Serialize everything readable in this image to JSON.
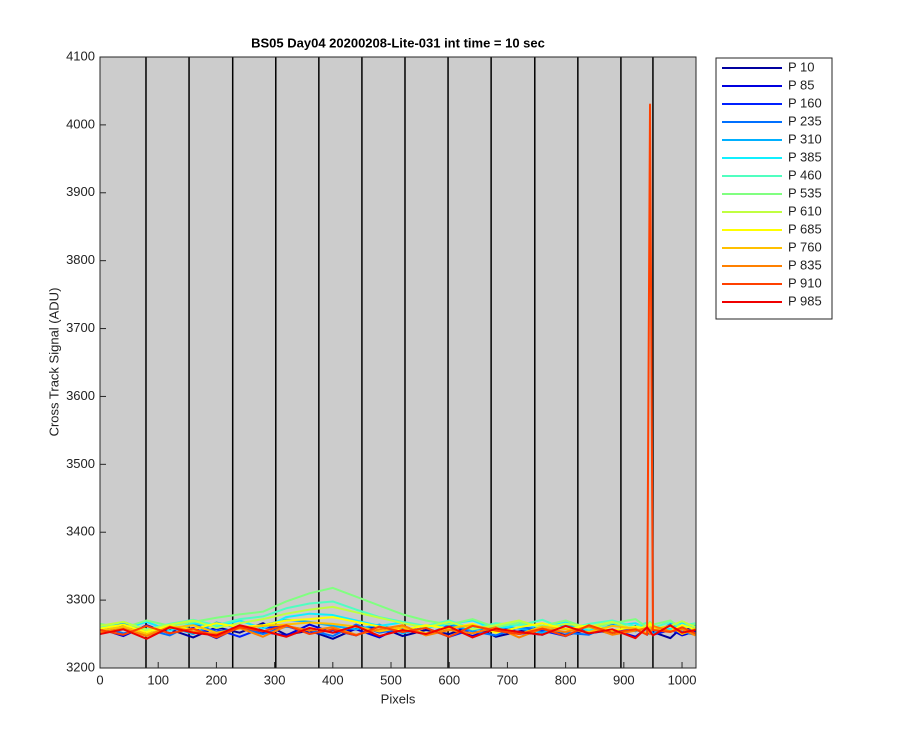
{
  "chart_data": {
    "type": "line",
    "title": "BS05 Day04 20200208-Lite-031 int time = 10 sec",
    "x_label": "Pixels",
    "y_label": "Cross Track Signal (ADU)",
    "xlim": [
      0,
      1024
    ],
    "ylim": [
      3200,
      4100
    ],
    "xticks": [
      0,
      100,
      200,
      300,
      400,
      500,
      600,
      700,
      800,
      900,
      1000
    ],
    "yticks": [
      3200,
      3300,
      3400,
      3500,
      3600,
      3700,
      3800,
      3900,
      4000,
      4100
    ],
    "vertical_lines": [
      79,
      153,
      228,
      302,
      376,
      450,
      524,
      598,
      672,
      747,
      821,
      895,
      950
    ],
    "legend": "outside-right",
    "x": [
      0,
      40,
      80,
      120,
      160,
      200,
      240,
      280,
      320,
      360,
      400,
      440,
      480,
      520,
      560,
      600,
      640,
      680,
      720,
      760,
      800,
      840,
      880,
      920,
      940,
      945,
      950,
      980,
      1000,
      1023
    ],
    "series": [
      {
        "name": "P 10",
        "color": "#00009f",
        "values": [
          3250,
          3262,
          3248,
          3257,
          3245,
          3260,
          3252,
          3266,
          3249,
          3255,
          3243,
          3258,
          3261,
          3247,
          3256,
          3250,
          3263,
          3246,
          3254,
          3259,
          3248,
          3257,
          3251,
          3262,
          3249,
          3256,
          3253,
          3244,
          3260,
          3255
        ]
      },
      {
        "name": "P 85",
        "color": "#0000e0",
        "values": [
          3258,
          3247,
          3263,
          3251,
          3259,
          3244,
          3261,
          3253,
          3248,
          3264,
          3252,
          3257,
          3245,
          3262,
          3250,
          3258,
          3247,
          3260,
          3253,
          3249,
          3265,
          3251,
          3256,
          3246,
          3259,
          3252,
          3261,
          3257,
          3248,
          3254
        ]
      },
      {
        "name": "P 160",
        "color": "#0020ff",
        "values": [
          3255,
          3260,
          3249,
          3264,
          3252,
          3257,
          3246,
          3259,
          3262,
          3251,
          3256,
          3248,
          3263,
          3254,
          3259,
          3246,
          3257,
          3262,
          3250,
          3255,
          3247,
          3261,
          3253,
          3258,
          3251,
          3263,
          3249,
          3256,
          3252,
          3260
        ]
      },
      {
        "name": "P 235",
        "color": "#0070ff",
        "values": [
          3262,
          3251,
          3257,
          3248,
          3265,
          3253,
          3259,
          3250,
          3261,
          3256,
          3247,
          3264,
          3252,
          3258,
          3249,
          3263,
          3254,
          3248,
          3260,
          3257,
          3252,
          3249,
          3264,
          3255,
          3258,
          3250,
          3257,
          3262,
          3253,
          3249
        ]
      },
      {
        "name": "P 310",
        "color": "#00b0ff",
        "values": [
          3259,
          3266,
          3254,
          3261,
          3250,
          3267,
          3258,
          3263,
          3271,
          3268,
          3262,
          3257,
          3264,
          3251,
          3260,
          3266,
          3255,
          3262,
          3258,
          3252,
          3263,
          3257,
          3268,
          3254,
          3261,
          3256,
          3250,
          3265,
          3259,
          3262
        ]
      },
      {
        "name": "P 385",
        "color": "#10f0ff",
        "values": [
          3263,
          3257,
          3268,
          3255,
          3266,
          3261,
          3270,
          3258,
          3275,
          3280,
          3278,
          3270,
          3262,
          3267,
          3259,
          3265,
          3270,
          3257,
          3264,
          3260,
          3268,
          3255,
          3262,
          3266,
          3258,
          3264,
          3261,
          3257,
          3267,
          3260
        ]
      },
      {
        "name": "P 460",
        "color": "#50ffc0",
        "values": [
          3260,
          3268,
          3257,
          3265,
          3271,
          3263,
          3272,
          3276,
          3288,
          3295,
          3298,
          3286,
          3275,
          3268,
          3262,
          3270,
          3258,
          3266,
          3263,
          3271,
          3257,
          3265,
          3270,
          3261,
          3267,
          3263,
          3259,
          3268,
          3262,
          3266
        ]
      },
      {
        "name": "P 535",
        "color": "#80ff80",
        "values": [
          3265,
          3259,
          3270,
          3262,
          3268,
          3274,
          3279,
          3283,
          3298,
          3310,
          3318,
          3305,
          3292,
          3279,
          3270,
          3264,
          3272,
          3260,
          3267,
          3262,
          3270,
          3258,
          3266,
          3272,
          3260,
          3268,
          3264,
          3270,
          3257,
          3265
        ]
      },
      {
        "name": "P 610",
        "color": "#c0ff40",
        "values": [
          3262,
          3268,
          3256,
          3264,
          3270,
          3259,
          3266,
          3272,
          3280,
          3286,
          3290,
          3282,
          3274,
          3266,
          3260,
          3268,
          3257,
          3263,
          3270,
          3259,
          3265,
          3261,
          3268,
          3256,
          3263,
          3267,
          3258,
          3262,
          3269,
          3260
        ]
      },
      {
        "name": "P 685",
        "color": "#ffff00",
        "values": [
          3258,
          3264,
          3253,
          3262,
          3257,
          3266,
          3260,
          3263,
          3270,
          3272,
          3275,
          3268,
          3261,
          3256,
          3263,
          3258,
          3265,
          3252,
          3260,
          3266,
          3257,
          3263,
          3255,
          3261,
          3258,
          3265,
          3260,
          3254,
          3263,
          3257
        ]
      },
      {
        "name": "P 760",
        "color": "#ffc000",
        "values": [
          3255,
          3261,
          3250,
          3259,
          3263,
          3252,
          3258,
          3262,
          3264,
          3267,
          3265,
          3261,
          3254,
          3260,
          3251,
          3259,
          3263,
          3256,
          3250,
          3261,
          3257,
          3253,
          3262,
          3258,
          3251,
          3260,
          3256,
          3262,
          3250,
          3258
        ]
      },
      {
        "name": "P 835",
        "color": "#ff8000",
        "values": [
          3252,
          3258,
          3247,
          3261,
          3254,
          3250,
          3259,
          3246,
          3262,
          3255,
          3260,
          3249,
          3257,
          3263,
          3248,
          3256,
          3251,
          3260,
          3245,
          3258,
          3253,
          3261,
          3249,
          3255,
          3259,
          3250,
          3262,
          3254,
          3257,
          3248
        ]
      },
      {
        "name": "P 910",
        "color": "#ff4000",
        "values": [
          3256,
          3249,
          3262,
          3251,
          3258,
          3245,
          3260,
          3254,
          3263,
          3250,
          3257,
          3248,
          3261,
          3253,
          3259,
          3246,
          3262,
          3255,
          3250,
          3258,
          3247,
          3263,
          3252,
          3257,
          3249,
          4030,
          3256,
          3253,
          3260,
          3251
        ]
      },
      {
        "name": "P 985",
        "color": "#f00000",
        "values": [
          3250,
          3257,
          3243,
          3260,
          3252,
          3248,
          3263,
          3255,
          3246,
          3259,
          3252,
          3262,
          3247,
          3256,
          3250,
          3261,
          3245,
          3258,
          3253,
          3249,
          3262,
          3251,
          3257,
          3244,
          3260,
          3254,
          3248,
          3263,
          3252,
          3256
        ]
      }
    ]
  }
}
